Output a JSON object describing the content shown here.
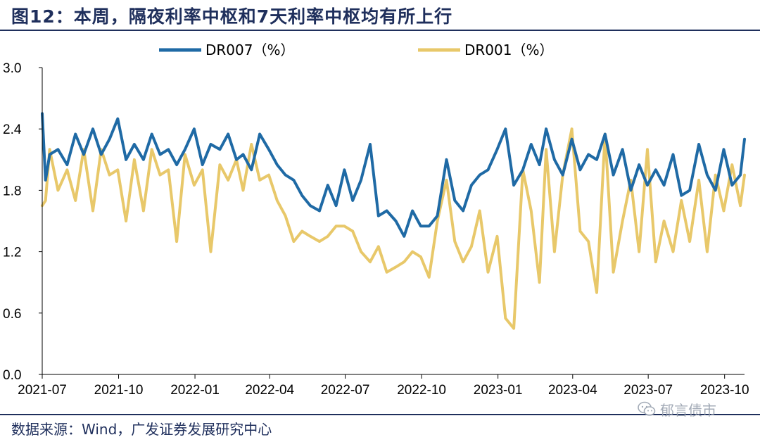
{
  "title": "图12：本周，隔夜利率中枢和7天利率中枢均有所上行",
  "source": "数据来源：Wind，广发证券发展研究中心",
  "watermark": "郁言债市",
  "chart_data": {
    "type": "line",
    "title": "",
    "xlabel": "",
    "ylabel": "",
    "ylim": [
      0.0,
      3.0
    ],
    "yticks": [
      "0.0",
      "0.6",
      "1.2",
      "1.8",
      "2.4",
      "3.0"
    ],
    "xlim": [
      "2021-07-01",
      "2023-10-25"
    ],
    "xticks": [
      "2021-07",
      "2021-10",
      "2022-01",
      "2022-04",
      "2022-07",
      "2022-10",
      "2023-01",
      "2023-04",
      "2023-07",
      "2023-10"
    ],
    "legend": "top",
    "grid": false,
    "series": [
      {
        "name": "DR007（%）",
        "color": "#1f6aa5",
        "x": [
          "2021-07-01",
          "2021-07-05",
          "2021-07-10",
          "2021-07-20",
          "2021-07-31",
          "2021-08-10",
          "2021-08-20",
          "2021-08-31",
          "2021-09-10",
          "2021-09-20",
          "2021-09-30",
          "2021-10-10",
          "2021-10-20",
          "2021-10-31",
          "2021-11-10",
          "2021-11-20",
          "2021-11-30",
          "2021-12-10",
          "2021-12-20",
          "2021-12-31",
          "2022-01-10",
          "2022-01-20",
          "2022-01-31",
          "2022-02-10",
          "2022-02-20",
          "2022-02-28",
          "2022-03-10",
          "2022-03-20",
          "2022-03-31",
          "2022-04-10",
          "2022-04-20",
          "2022-04-30",
          "2022-05-10",
          "2022-05-20",
          "2022-05-31",
          "2022-06-10",
          "2022-06-20",
          "2022-06-30",
          "2022-07-10",
          "2022-07-20",
          "2022-07-31",
          "2022-08-10",
          "2022-08-20",
          "2022-08-31",
          "2022-09-10",
          "2022-09-20",
          "2022-09-30",
          "2022-10-10",
          "2022-10-20",
          "2022-10-31",
          "2022-11-10",
          "2022-11-20",
          "2022-11-30",
          "2022-12-10",
          "2022-12-20",
          "2022-12-31",
          "2023-01-10",
          "2023-01-20",
          "2023-01-31",
          "2023-02-10",
          "2023-02-20",
          "2023-02-28",
          "2023-03-10",
          "2023-03-20",
          "2023-03-31",
          "2023-04-10",
          "2023-04-20",
          "2023-04-30",
          "2023-05-10",
          "2023-05-20",
          "2023-05-31",
          "2023-06-10",
          "2023-06-20",
          "2023-06-30",
          "2023-07-10",
          "2023-07-20",
          "2023-07-31",
          "2023-08-10",
          "2023-08-20",
          "2023-08-31",
          "2023-09-10",
          "2023-09-20",
          "2023-09-30",
          "2023-10-10",
          "2023-10-20",
          "2023-10-25"
        ],
        "values": [
          2.55,
          1.9,
          2.15,
          2.2,
          2.05,
          2.35,
          2.15,
          2.4,
          2.15,
          2.3,
          2.5,
          2.1,
          2.25,
          2.1,
          2.35,
          2.15,
          2.2,
          2.05,
          2.2,
          2.4,
          2.05,
          2.25,
          2.2,
          2.35,
          2.1,
          2.15,
          2.0,
          2.35,
          2.2,
          2.05,
          1.95,
          1.9,
          1.75,
          1.65,
          1.6,
          1.85,
          1.65,
          2.0,
          1.7,
          1.9,
          2.25,
          1.55,
          1.6,
          1.5,
          1.35,
          1.6,
          1.45,
          1.45,
          1.55,
          2.1,
          1.7,
          1.6,
          1.85,
          1.95,
          2.0,
          2.2,
          2.4,
          1.85,
          2.0,
          2.25,
          2.05,
          2.4,
          2.1,
          1.95,
          2.3,
          2.0,
          2.15,
          2.1,
          2.35,
          1.95,
          2.2,
          1.8,
          2.05,
          1.85,
          2.0,
          1.85,
          2.15,
          1.75,
          1.8,
          2.25,
          1.95,
          1.8,
          2.2,
          1.85,
          1.95,
          2.3
        ]
      },
      {
        "name": "DR001（%）",
        "color": "#e8c86a",
        "x": [
          "2021-07-01",
          "2021-07-05",
          "2021-07-10",
          "2021-07-20",
          "2021-07-31",
          "2021-08-10",
          "2021-08-20",
          "2021-08-31",
          "2021-09-10",
          "2021-09-20",
          "2021-09-30",
          "2021-10-10",
          "2021-10-20",
          "2021-10-31",
          "2021-11-10",
          "2021-11-20",
          "2021-11-30",
          "2021-12-10",
          "2021-12-20",
          "2021-12-31",
          "2022-01-10",
          "2022-01-20",
          "2022-01-31",
          "2022-02-10",
          "2022-02-20",
          "2022-02-28",
          "2022-03-10",
          "2022-03-20",
          "2022-03-31",
          "2022-04-10",
          "2022-04-20",
          "2022-04-30",
          "2022-05-10",
          "2022-05-20",
          "2022-05-31",
          "2022-06-10",
          "2022-06-20",
          "2022-06-30",
          "2022-07-10",
          "2022-07-20",
          "2022-07-31",
          "2022-08-10",
          "2022-08-20",
          "2022-08-31",
          "2022-09-10",
          "2022-09-20",
          "2022-09-30",
          "2022-10-10",
          "2022-10-20",
          "2022-10-31",
          "2022-11-10",
          "2022-11-20",
          "2022-11-30",
          "2022-12-10",
          "2022-12-20",
          "2022-12-31",
          "2023-01-10",
          "2023-01-20",
          "2023-01-31",
          "2023-02-10",
          "2023-02-20",
          "2023-02-28",
          "2023-03-10",
          "2023-03-20",
          "2023-03-31",
          "2023-04-10",
          "2023-04-20",
          "2023-04-30",
          "2023-05-10",
          "2023-05-20",
          "2023-05-31",
          "2023-06-10",
          "2023-06-20",
          "2023-06-30",
          "2023-07-10",
          "2023-07-20",
          "2023-07-31",
          "2023-08-10",
          "2023-08-20",
          "2023-08-31",
          "2023-09-10",
          "2023-09-20",
          "2023-09-30",
          "2023-10-10",
          "2023-10-20",
          "2023-10-25"
        ],
        "values": [
          1.65,
          1.7,
          2.2,
          1.8,
          2.0,
          1.7,
          2.2,
          1.6,
          2.2,
          1.95,
          2.0,
          1.5,
          2.1,
          1.6,
          2.2,
          1.95,
          2.0,
          1.3,
          2.15,
          1.85,
          2.0,
          1.2,
          2.05,
          1.9,
          2.1,
          1.8,
          2.25,
          1.9,
          1.95,
          1.7,
          1.55,
          1.3,
          1.4,
          1.35,
          1.3,
          1.35,
          1.45,
          1.45,
          1.4,
          1.2,
          1.1,
          1.25,
          1.0,
          1.05,
          1.1,
          1.2,
          1.15,
          0.95,
          1.5,
          1.9,
          1.3,
          1.1,
          1.25,
          1.6,
          1.0,
          1.35,
          0.55,
          0.45,
          2.0,
          1.6,
          0.9,
          2.2,
          1.2,
          1.95,
          2.4,
          1.4,
          1.3,
          0.8,
          2.35,
          1.0,
          1.5,
          1.9,
          1.2,
          2.2,
          1.1,
          1.5,
          1.2,
          1.7,
          1.3,
          1.9,
          1.2,
          1.95,
          1.6,
          2.05,
          1.65,
          1.95
        ]
      }
    ]
  }
}
